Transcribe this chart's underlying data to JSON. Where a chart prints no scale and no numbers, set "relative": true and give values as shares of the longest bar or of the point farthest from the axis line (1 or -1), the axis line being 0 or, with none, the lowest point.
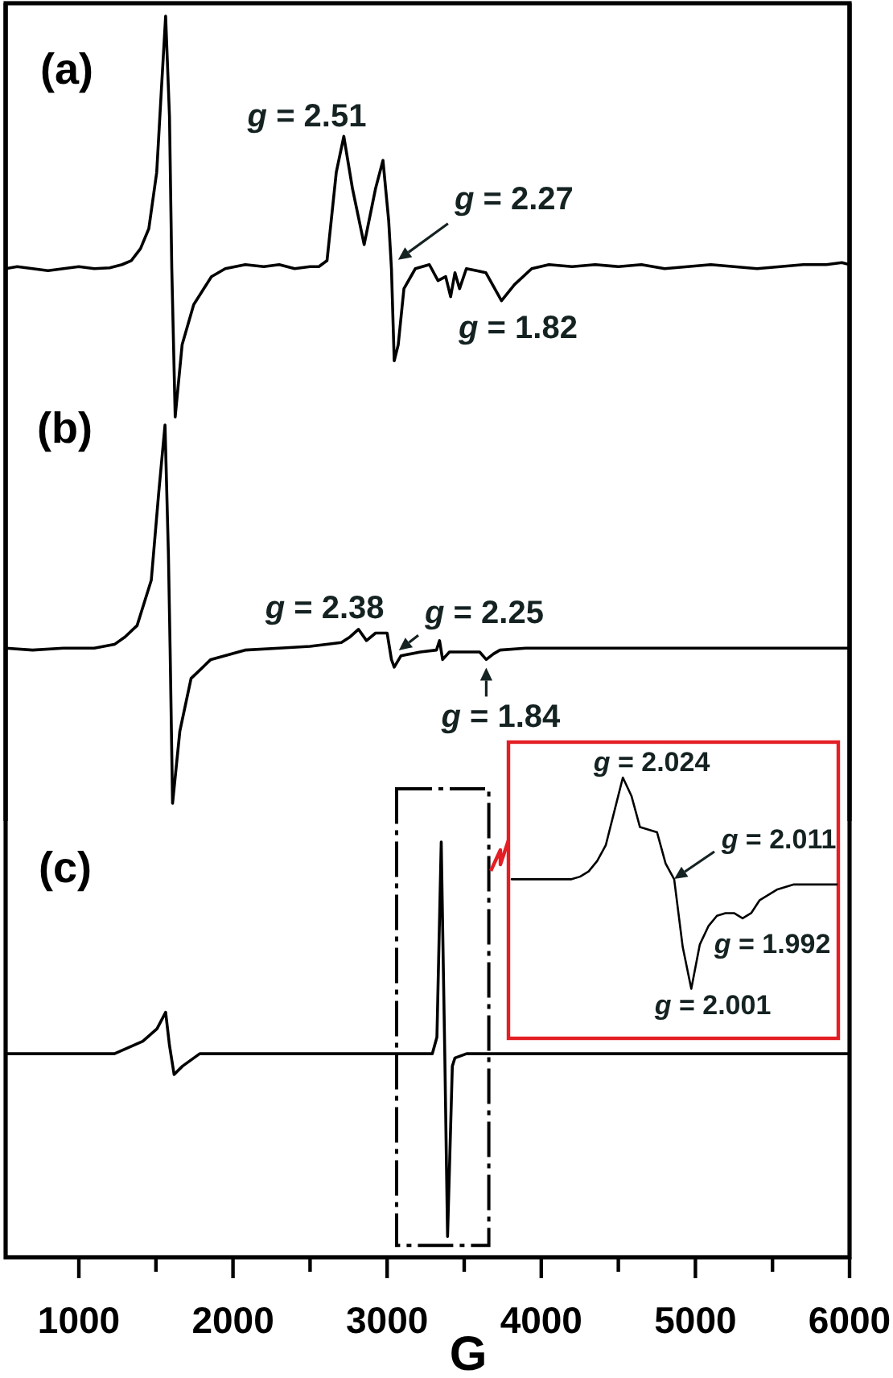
{
  "chart_data": [
    {
      "type": "line",
      "title": "(a)",
      "x": [
        525,
        600,
        700,
        800,
        900,
        1000,
        1100,
        1200,
        1280,
        1340,
        1400,
        1454,
        1505,
        1536,
        1563,
        1588,
        1603,
        1625,
        1670,
        1745,
        1860,
        1950,
        2080,
        2200,
        2300,
        2400,
        2500,
        2557,
        2610,
        2670,
        2719,
        2775,
        2851,
        2925,
        2973,
        3010,
        3028,
        3046,
        3072,
        3109,
        3183,
        3274,
        3330,
        3380,
        3412,
        3440,
        3470,
        3514,
        3580,
        3640,
        3742,
        3826,
        3938,
        4050,
        4200,
        4350,
        4500,
        4650,
        4800,
        4950,
        5100,
        5250,
        5400,
        5550,
        5700,
        5850,
        5950,
        6000
      ],
      "values": [
        0.37,
        0.375,
        0.37,
        0.365,
        0.37,
        0.375,
        0.37,
        0.372,
        0.38,
        0.39,
        0.42,
        0.47,
        0.61,
        0.82,
        1.0,
        0.75,
        0.37,
        0,
        0.18,
        0.28,
        0.35,
        0.37,
        0.38,
        0.375,
        0.38,
        0.37,
        0.375,
        0.375,
        0.39,
        0.61,
        0.7,
        0.57,
        0.43,
        0.57,
        0.64,
        0.49,
        0.37,
        0.14,
        0.18,
        0.32,
        0.37,
        0.38,
        0.34,
        0.35,
        0.3,
        0.36,
        0.32,
        0.37,
        0.365,
        0.36,
        0.29,
        0.33,
        0.37,
        0.38,
        0.375,
        0.38,
        0.375,
        0.38,
        0.37,
        0.375,
        0.38,
        0.375,
        0.37,
        0.375,
        0.38,
        0.38,
        0.385,
        0.38
      ],
      "color": "#000000",
      "relative": true,
      "xlim": [
        525,
        6000
      ],
      "tick_labels": false,
      "annotations": [
        {
          "text": "g = 2.51",
          "x": 2720,
          "y": 0.7
        },
        {
          "text": "g = 2.27",
          "x": 3040,
          "y": 0.39
        },
        {
          "text": "g = 1.82",
          "x": 3740,
          "y": 0.29
        }
      ]
    },
    {
      "type": "line",
      "title": "(b)",
      "x": [
        525,
        700,
        900,
        1100,
        1231,
        1300,
        1378,
        1470,
        1518,
        1559,
        1581,
        1592,
        1608,
        1655,
        1728,
        1856,
        2078,
        2300,
        2500,
        2703,
        2760,
        2814,
        2866,
        2925,
        3000,
        3028,
        3046,
        3090,
        3216,
        3320,
        3340,
        3360,
        3404,
        3500,
        3600,
        3643,
        3690,
        3732,
        3900,
        4200,
        4600,
        5000,
        5500,
        6000
      ],
      "values": [
        0.41,
        0.405,
        0.41,
        0.41,
        0.42,
        0.44,
        0.47,
        0.59,
        0.82,
        1.0,
        0.66,
        0.41,
        0,
        0.19,
        0.33,
        0.38,
        0.405,
        0.41,
        0.415,
        0.425,
        0.44,
        0.46,
        0.43,
        0.45,
        0.45,
        0.38,
        0.36,
        0.39,
        0.4,
        0.405,
        0.43,
        0.38,
        0.4,
        0.4,
        0.4,
        0.38,
        0.395,
        0.405,
        0.41,
        0.41,
        0.41,
        0.41,
        0.41,
        0.41
      ],
      "color": "#000000",
      "relative": true,
      "xlim": [
        525,
        6000
      ],
      "tick_labels": false,
      "annotations": [
        {
          "text": "g = 2.38",
          "x": 2814,
          "y": 0.46
        },
        {
          "text": "g = 2.25",
          "x": 3050,
          "y": 0.4
        },
        {
          "text": "g = 1.84",
          "x": 3643,
          "y": 0.38
        }
      ]
    },
    {
      "type": "line",
      "title": "(c)",
      "x": [
        525,
        800,
        1100,
        1231,
        1415,
        1507,
        1563,
        1588,
        1618,
        1672,
        1784,
        2000,
        2500,
        3000,
        3293,
        3323,
        3351,
        3374,
        3392,
        3423,
        3440,
        3515,
        4000,
        5000,
        6000
      ],
      "values": [
        0.49,
        0.49,
        0.49,
        0.49,
        0.52,
        0.55,
        0.59,
        0.51,
        0.44,
        0.46,
        0.49,
        0.49,
        0.49,
        0.49,
        0.49,
        0.53,
        1.0,
        0.49,
        0.05,
        0.46,
        0.48,
        0.49,
        0.49,
        0.49,
        0.49
      ],
      "color": "#000000",
      "relative": true,
      "xlim": [
        525,
        6000
      ],
      "xticks": [
        1000,
        {
          "value": 1500,
          "label": null
        },
        2000,
        {
          "value": 2500,
          "label": null
        },
        3000,
        {
          "value": 3500,
          "label": null
        },
        4000,
        {
          "value": 4500,
          "label": null
        },
        5000,
        {
          "value": 5500,
          "label": null
        },
        6000
      ],
      "xlabel": "G"
    },
    {
      "type": "line",
      "categories": [
        null,
        null,
        null,
        null,
        null,
        null,
        null,
        null,
        null,
        null,
        null,
        null,
        null,
        null,
        null,
        null,
        null,
        null,
        null,
        null,
        null,
        null,
        null,
        null,
        null,
        null,
        null,
        null,
        null,
        null,
        null,
        null,
        null,
        null,
        null,
        null,
        null,
        null,
        null
      ],
      "values": [
        0.61,
        0.61,
        0.61,
        0.61,
        0.61,
        0.61,
        0.61,
        0.61,
        0.62,
        0.64,
        0.68,
        0.74,
        0.87,
        1.0,
        0.93,
        0.81,
        0.8,
        0.79,
        0.67,
        0.61,
        0.35,
        0.19,
        0.36,
        0.43,
        0.47,
        0.48,
        0.48,
        0.46,
        0.48,
        0.53,
        0.55,
        0.57,
        0.58,
        0.59,
        0.59,
        0.59,
        0.59,
        0.59,
        0.59
      ],
      "color": "#000000",
      "relative": true,
      "annotations": [
        "g = 2.024",
        "g = 2.011",
        "g = 1.992",
        "g = 2.001"
      ]
    }
  ]
}
